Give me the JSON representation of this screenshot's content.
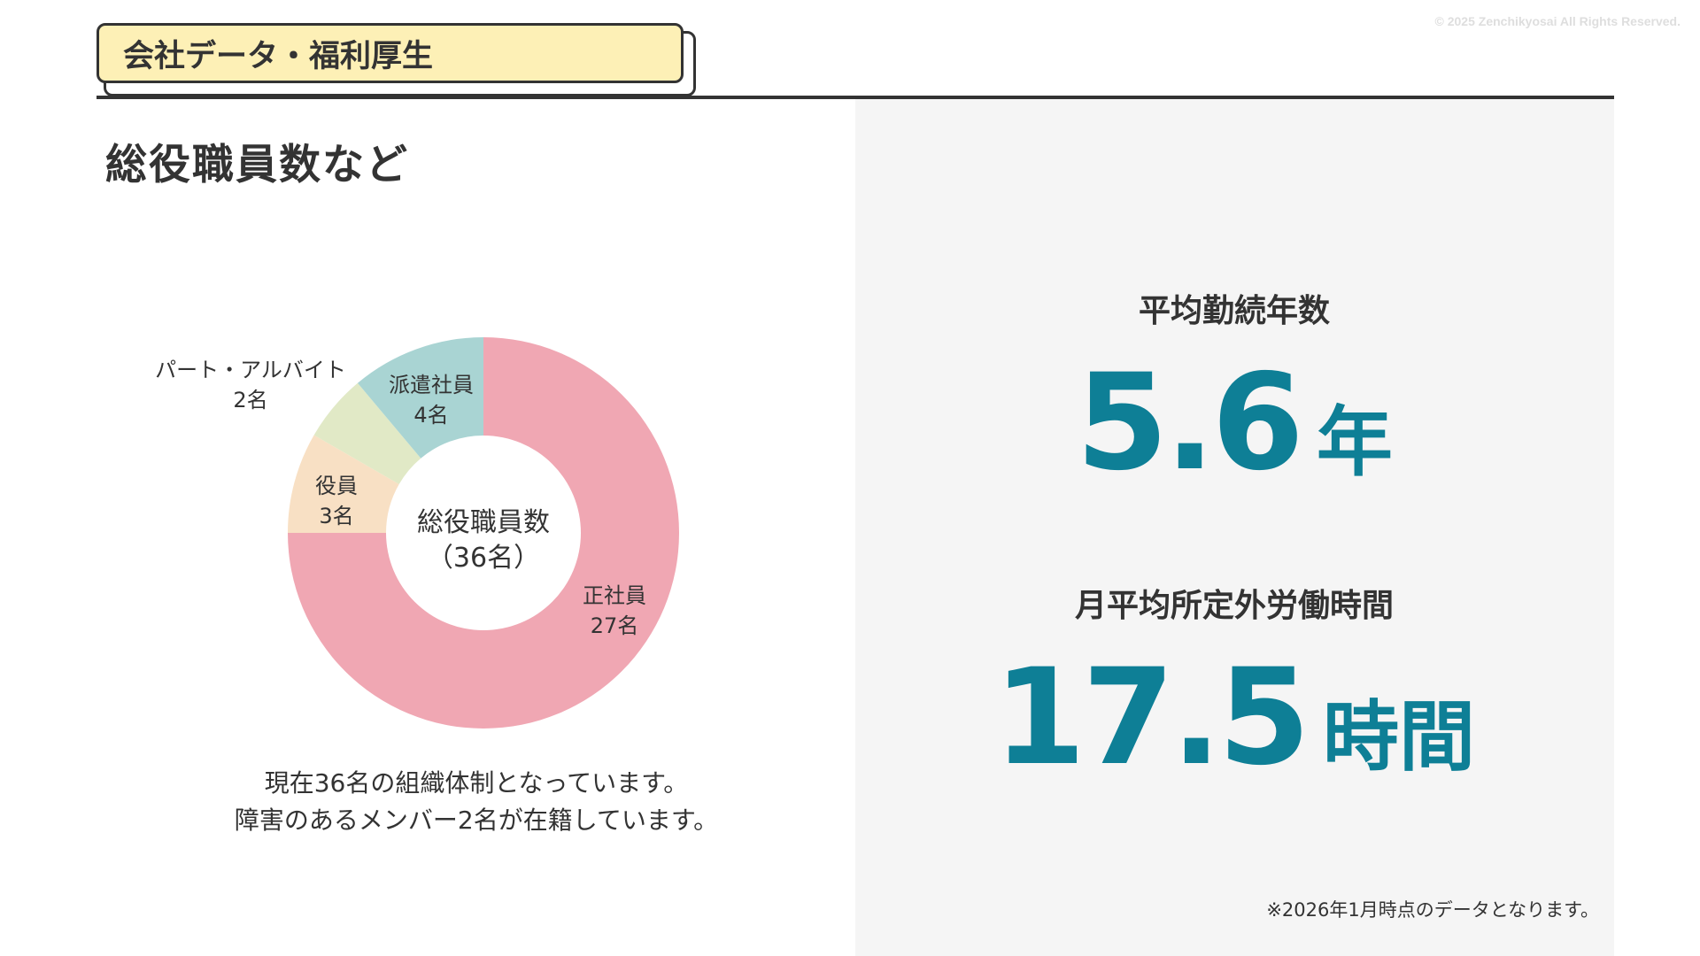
{
  "copyright": "© 2025 Zenchikyosai All Rights Reserved.",
  "section_tab": "会社データ・福利厚生",
  "page_title": "総役職員数など",
  "chart_data": {
    "type": "pie",
    "donut": true,
    "title": "総役職員数",
    "center_label": [
      "総役職員数",
      "（36名）"
    ],
    "total": 36,
    "slices": [
      {
        "label": "正社員",
        "value": 27,
        "value_label": "27名",
        "color": "#f0a7b3"
      },
      {
        "label": "役員",
        "value": 3,
        "value_label": "3名",
        "color": "#f8e0c4"
      },
      {
        "label": "パート・アルバイト",
        "value": 2,
        "value_label": "2名",
        "color": "#e1e9c6"
      },
      {
        "label": "派遣社員",
        "value": 4,
        "value_label": "4名",
        "color": "#a9d4d3"
      }
    ]
  },
  "summary": [
    "現在36名の組織体制となっています。",
    "障害のあるメンバー2名が在籍しています。"
  ],
  "stats": [
    {
      "label": "平均勤続年数",
      "value": "5.6",
      "unit": "年"
    },
    {
      "label": "月平均所定外労働時間",
      "value": "17.5",
      "unit": "時間"
    }
  ],
  "footnote": "※2026年1月時点のデータとなります。",
  "colors": {
    "accent": "#0e7f96",
    "tab_fill": "#fdf0b6",
    "panel_bg": "#f5f5f5",
    "text": "#333333"
  }
}
